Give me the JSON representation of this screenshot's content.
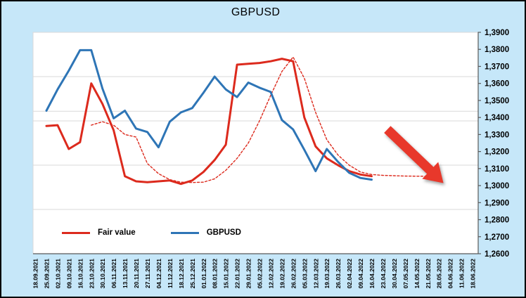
{
  "window": {
    "title": "GBPUSD"
  },
  "legend": {
    "items": [
      {
        "label": "Fair value",
        "color": "#dc2a1d"
      },
      {
        "label": "GBPUSD",
        "color": "#2e75b6"
      }
    ]
  },
  "chart_data": {
    "type": "line",
    "title": "GBPUSD",
    "categories": [
      "18.09.2021",
      "25.09.2021",
      "02.10.2021",
      "09.10.2021",
      "16.10.2021",
      "23.10.2021",
      "30.10.2021",
      "06.11.2021",
      "13.11.2021",
      "20.11.2021",
      "27.11.2021",
      "04.12.2021",
      "11.12.2021",
      "18.12.2021",
      "25.12.2021",
      "01.01.2022",
      "08.01.2022",
      "15.01.2022",
      "22.01.2022",
      "29.01.2022",
      "05.02.2022",
      "12.02.2022",
      "19.02.2022",
      "26.02.2022",
      "05.03.2022",
      "12.03.2022",
      "19.03.2022",
      "26.03.2022",
      "02.04.2022",
      "09.04.2022",
      "16.04.2022",
      "23.04.2022",
      "30.04.2022",
      "07.05.2022",
      "14.05.2022",
      "21.05.2022",
      "28.05.2022",
      "04.06.2022",
      "11.06.2022",
      "18.06.2022"
    ],
    "series": [
      {
        "name": "Fair value",
        "color": "#dc2a1d",
        "style": "solid",
        "width": 3,
        "in_legend": true,
        "values": [
          null,
          1.335,
          1.3355,
          1.3215,
          1.3255,
          1.36,
          1.348,
          1.3325,
          1.3055,
          1.3025,
          1.302,
          1.3025,
          1.303,
          1.301,
          1.303,
          1.308,
          1.315,
          1.324,
          1.371,
          1.3715,
          1.372,
          1.373,
          1.3745,
          1.373,
          1.34,
          1.323,
          1.316,
          1.312,
          1.3085,
          1.3065,
          1.3055,
          null,
          null,
          null,
          null,
          null,
          null,
          null,
          null,
          null
        ]
      },
      {
        "name": "GBPUSD",
        "color": "#2e75b6",
        "style": "solid",
        "width": 3,
        "in_legend": true,
        "values": [
          null,
          1.344,
          1.3565,
          1.3675,
          1.3795,
          1.3795,
          1.357,
          1.3395,
          1.344,
          1.3335,
          1.3315,
          1.3225,
          1.3375,
          1.343,
          1.3455,
          1.3545,
          1.364,
          1.3565,
          1.352,
          1.3605,
          1.3575,
          1.355,
          1.3385,
          1.333,
          1.321,
          1.3085,
          1.3215,
          1.314,
          1.3075,
          1.3045,
          1.3035,
          null,
          null,
          null,
          null,
          null,
          null,
          null,
          null,
          null
        ]
      },
      {
        "name": "Fair value projection (dotted)",
        "color": "#dc2a1d",
        "style": "dashed",
        "width": 1.4,
        "in_legend": false,
        "values": [
          null,
          null,
          null,
          null,
          null,
          1.3355,
          1.3375,
          1.3355,
          1.33,
          1.3285,
          1.313,
          1.307,
          1.3035,
          1.302,
          1.3018,
          1.302,
          1.304,
          1.309,
          1.316,
          1.325,
          1.338,
          1.353,
          1.367,
          1.3755,
          1.363,
          1.343,
          1.327,
          1.318,
          1.312,
          1.308,
          1.3065,
          1.306,
          1.3058,
          1.3056,
          1.3055,
          1.3055,
          null,
          null,
          null,
          null
        ]
      }
    ],
    "xlabel": "",
    "ylabel": "",
    "ylim": [
      1.26,
      1.39
    ],
    "y_tick_step": 0.01,
    "y_axis_side": "right",
    "y_tick_labels": [
      "1,3900",
      "1,3800",
      "1,3700",
      "1,3600",
      "1,3500",
      "1,3400",
      "1,3300",
      "1,3200",
      "1,3100",
      "1,3000",
      "1,2900",
      "1,2800",
      "1,2700",
      "1,2600"
    ],
    "x_labels_rotated_90": true,
    "grid": "horizontal-partial",
    "gridline_values": [
      1.364,
      1.3437,
      1.338,
      1.312,
      1.286
    ],
    "legend_position": "inside-bottom-left",
    "annotations": [
      {
        "type": "arrow",
        "direction": "down-right",
        "color": "#e8382b",
        "from": [
          31.4,
          1.333
        ],
        "to": [
          36.4,
          1.3015
        ]
      }
    ]
  }
}
